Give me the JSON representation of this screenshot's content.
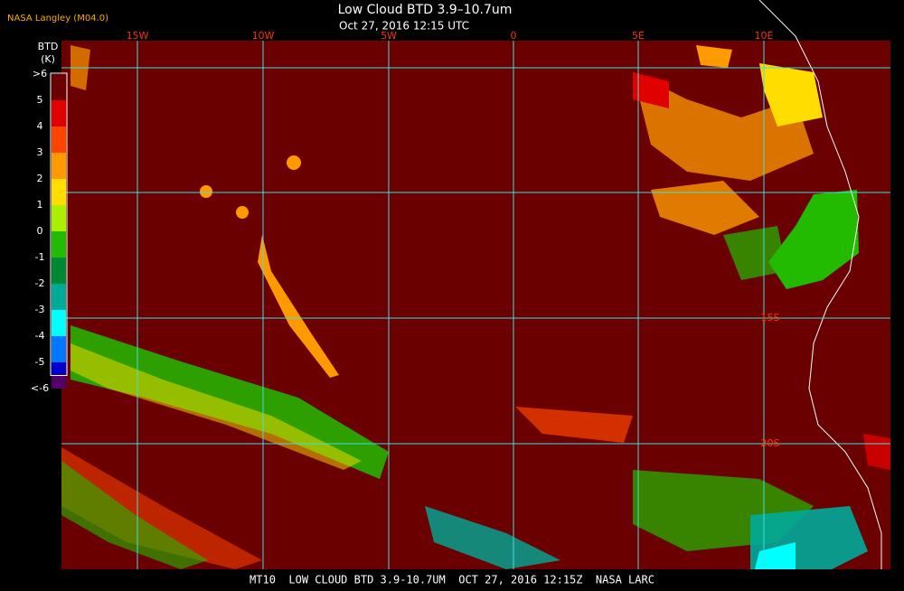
{
  "header": {
    "title": "Low Cloud BTD 3.9–10.7um",
    "subtitle": "Oct 27, 2016 12:15 UTC",
    "credit": "NASA Langley (M04.0)"
  },
  "colorbar": {
    "title": "BTD",
    "unit": "(K)",
    "items": [
      {
        "label": ">6",
        "color": "#6a0000"
      },
      {
        "label": "5",
        "color": "#e00000"
      },
      {
        "label": "4",
        "color": "#ff4400"
      },
      {
        "label": "3",
        "color": "#ff9900"
      },
      {
        "label": "2",
        "color": "#ffdd00"
      },
      {
        "label": "1",
        "color": "#aaee00"
      },
      {
        "label": "0",
        "color": "#22bb00"
      },
      {
        "label": "-1",
        "color": "#008833"
      },
      {
        "label": "-2",
        "color": "#00aa99"
      },
      {
        "label": "-3",
        "color": "#00ffff"
      },
      {
        "label": "-4",
        "color": "#0077ff"
      },
      {
        "label": "-5",
        "color": "#0000cc"
      },
      {
        "label": "<-6",
        "color": "#550066"
      }
    ]
  },
  "grid": {
    "longitudes": [
      "15W",
      "10W",
      "5W",
      "0",
      "5E",
      "10E"
    ],
    "latitudes": [
      "15S",
      "20S"
    ]
  },
  "footer": "MT10  LOW CLOUD BTD 3.9-10.7UM  OCT 27, 2016 12:15Z  NASA LARC"
}
